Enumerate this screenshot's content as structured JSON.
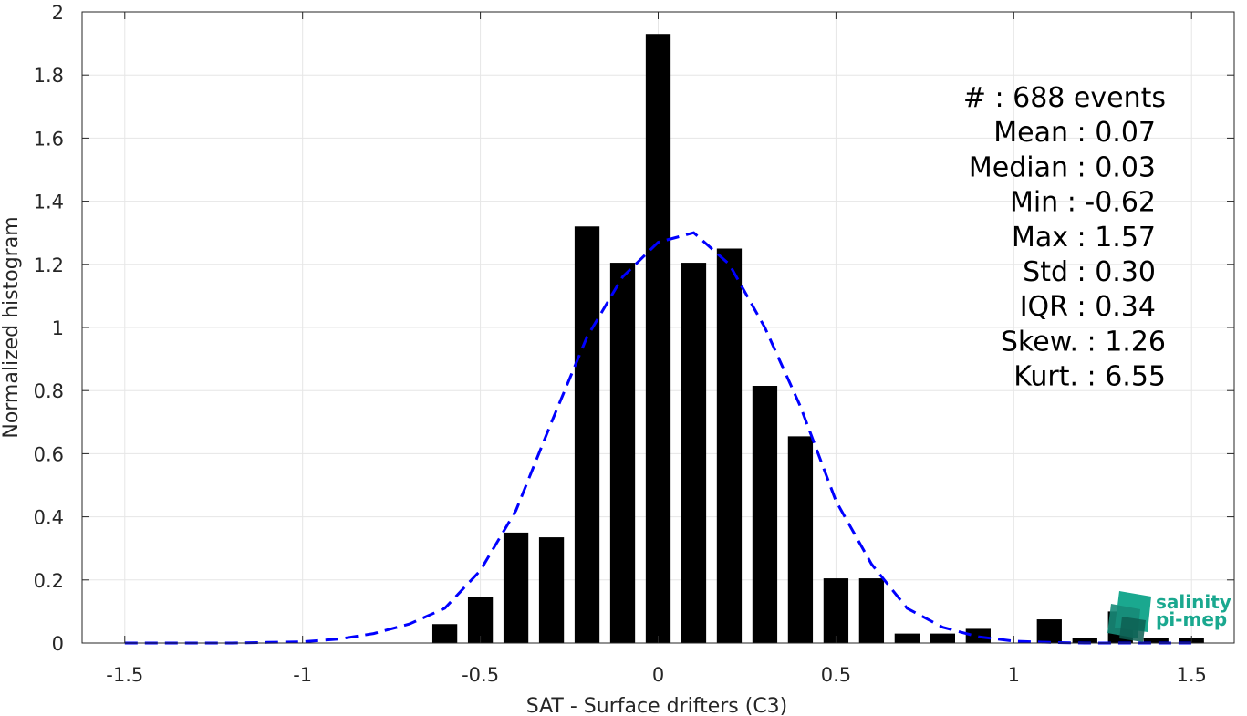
{
  "chart_data": {
    "type": "bar",
    "xlabel": "SAT - Surface drifters (C3)",
    "ylabel": "Normalized histogram",
    "xlim": [
      -1.62,
      1.62
    ],
    "ylim": [
      0,
      2
    ],
    "xticks": [
      -1.5,
      -1,
      -0.5,
      0,
      0.5,
      1,
      1.5
    ],
    "xtick_labels": [
      "-1.5",
      "-1",
      "-0.5",
      "0",
      "0.5",
      "1",
      "1.5"
    ],
    "yticks": [
      0,
      0.2,
      0.4,
      0.6,
      0.8,
      1,
      1.2,
      1.4,
      1.6,
      1.8,
      2
    ],
    "ytick_labels": [
      "0",
      "0.2",
      "0.4",
      "0.6",
      "0.8",
      "1",
      "1.2",
      "1.4",
      "1.6",
      "1.8",
      "2"
    ],
    "grid": true,
    "bar_color": "#000000",
    "bar_width": 0.07,
    "bars": [
      {
        "x": -0.6,
        "y": 0.06
      },
      {
        "x": -0.5,
        "y": 0.145
      },
      {
        "x": -0.4,
        "y": 0.35
      },
      {
        "x": -0.3,
        "y": 0.335
      },
      {
        "x": -0.2,
        "y": 1.32
      },
      {
        "x": -0.1,
        "y": 1.205
      },
      {
        "x": 0.0,
        "y": 1.93
      },
      {
        "x": 0.1,
        "y": 1.205
      },
      {
        "x": 0.2,
        "y": 1.25
      },
      {
        "x": 0.3,
        "y": 0.815
      },
      {
        "x": 0.4,
        "y": 0.655
      },
      {
        "x": 0.5,
        "y": 0.205
      },
      {
        "x": 0.6,
        "y": 0.205
      },
      {
        "x": 0.7,
        "y": 0.03
      },
      {
        "x": 0.8,
        "y": 0.03
      },
      {
        "x": 0.9,
        "y": 0.045
      },
      {
        "x": 1.0,
        "y": 0.0
      },
      {
        "x": 1.1,
        "y": 0.075
      },
      {
        "x": 1.2,
        "y": 0.015
      },
      {
        "x": 1.3,
        "y": 0.1
      },
      {
        "x": 1.4,
        "y": 0.015
      },
      {
        "x": 1.5,
        "y": 0.015
      }
    ],
    "fit_curve": {
      "color": "#0000ff",
      "style": "dashed",
      "x": [
        -1.5,
        -1.4,
        -1.3,
        -1.2,
        -1.1,
        -1.0,
        -0.9,
        -0.8,
        -0.7,
        -0.6,
        -0.5,
        -0.4,
        -0.3,
        -0.2,
        -0.1,
        0.0,
        0.1,
        0.2,
        0.3,
        0.4,
        0.5,
        0.6,
        0.7,
        0.8,
        0.9,
        1.0,
        1.1,
        1.2,
        1.3,
        1.4,
        1.5
      ],
      "y": [
        0.0,
        0.0,
        0.0,
        0.0,
        0.002,
        0.004,
        0.012,
        0.03,
        0.06,
        0.11,
        0.23,
        0.42,
        0.7,
        0.97,
        1.16,
        1.27,
        1.3,
        1.2,
        1.0,
        0.75,
        0.45,
        0.25,
        0.11,
        0.05,
        0.02,
        0.006,
        0.002,
        0.0,
        0.0,
        0.0,
        0.0
      ]
    },
    "stats_lines": [
      "#  : 688 events",
      "Mean : 0.07",
      "Median : 0.03",
      "Min : -0.62",
      "Max : 1.57",
      "Std : 0.30",
      "IQR : 0.34",
      "Skew. : 1.26",
      "Kurt. : 6.55"
    ]
  },
  "logo": {
    "line1": "salinity",
    "line2": "pi-mep",
    "color": "#1aa88f"
  }
}
